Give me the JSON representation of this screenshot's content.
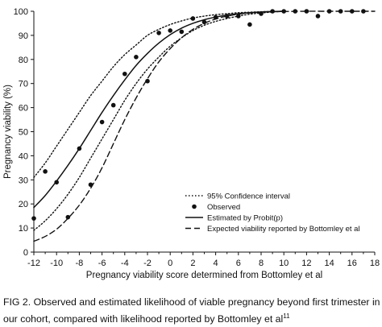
{
  "chart_data": {
    "type": "line",
    "xlabel": "Pregnancy viability score determined from Bottomley et al",
    "ylabel": "Pregnancy viability (%)",
    "xlim": [
      -12,
      18
    ],
    "ylim": [
      0,
      100
    ],
    "xticks": [
      -12,
      -10,
      -8,
      -6,
      -4,
      -2,
      0,
      2,
      4,
      6,
      8,
      10,
      12,
      14,
      16,
      18
    ],
    "yticks": [
      0,
      10,
      20,
      30,
      40,
      50,
      60,
      70,
      80,
      90,
      100
    ],
    "legend_position": "bottom-right",
    "series": [
      {
        "name": "95% Confidence interval",
        "style": "dotted",
        "x": [
          -12,
          -11,
          -10,
          -9,
          -8,
          -7,
          -6,
          -5,
          -4,
          -3,
          -2,
          -1,
          0,
          1,
          2,
          3,
          4,
          5,
          6,
          7,
          8,
          9,
          10
        ],
        "y": [
          31,
          37,
          44,
          51,
          58,
          65,
          71,
          77,
          82,
          86,
          90,
          92.5,
          94.5,
          96,
          97.2,
          98,
          98.6,
          99,
          99.4,
          99.6,
          99.8,
          99.9,
          100
        ]
      },
      {
        "name": "",
        "style": "dotted",
        "x": [
          -12,
          -11,
          -10,
          -9,
          -8,
          -7,
          -6,
          -5,
          -4,
          -3,
          -2,
          -1,
          0,
          1,
          2,
          3,
          4,
          5,
          6,
          7,
          8,
          9,
          10
        ],
        "y": [
          9,
          13,
          18,
          24,
          31,
          39,
          47,
          55,
          63,
          70,
          76,
          81,
          85.5,
          89,
          92,
          94.2,
          95.8,
          97,
          98,
          98.8,
          99.3,
          99.7,
          100
        ]
      },
      {
        "name": "Observed",
        "style": "points",
        "x": [
          -12,
          -11,
          -10,
          -9,
          -8,
          -7,
          -6,
          -5,
          -4,
          -3,
          -2,
          -1,
          0,
          1,
          2,
          3,
          4,
          5,
          6,
          7,
          8,
          9,
          10,
          11,
          12,
          13,
          14,
          15,
          16,
          17
        ],
        "y": [
          14,
          33.5,
          29,
          14.5,
          43,
          28,
          54,
          61,
          74,
          81,
          71,
          91,
          92,
          91.5,
          97,
          95.5,
          97.5,
          98,
          98,
          94.5,
          99,
          100,
          100,
          100,
          100,
          98,
          100,
          100,
          100,
          100
        ]
      },
      {
        "name": "Estimated by Probit(p)",
        "style": "solid",
        "x": [
          -12,
          -11,
          -10,
          -9,
          -8,
          -7,
          -6,
          -5,
          -4,
          -3,
          -2,
          -1,
          0,
          1,
          2,
          3,
          4,
          5,
          6,
          7,
          8,
          9,
          10
        ],
        "y": [
          18.5,
          23.5,
          29.5,
          36,
          43,
          50.5,
          58,
          65,
          71.5,
          77.5,
          82.5,
          86.8,
          90.3,
          93,
          95,
          96.5,
          97.6,
          98.4,
          99,
          99.4,
          99.7,
          99.9,
          100
        ]
      },
      {
        "name": "Expected viability reported by Bottomley et al",
        "style": "dashed",
        "x": [
          -12,
          -11,
          -10,
          -9,
          -8,
          -7,
          -6,
          -5,
          -4,
          -3,
          -2,
          -1,
          0,
          1,
          2,
          3,
          4,
          5,
          6,
          7,
          8,
          9,
          10,
          12,
          14,
          16,
          18
        ],
        "y": [
          4.5,
          6.5,
          9.5,
          14,
          19.5,
          26.5,
          35,
          45,
          55,
          64,
          72,
          79,
          84.5,
          89,
          92.5,
          95,
          96.8,
          98,
          98.8,
          99.3,
          99.6,
          99.8,
          99.9,
          100,
          100,
          100,
          100
        ]
      }
    ]
  },
  "caption": {
    "text": "FIG 2.  Observed and estimated likelihood of viable pregnancy beyond first trimester in our cohort, compared with likelihood reported by Bottomley et al",
    "superscript": "11"
  },
  "colors": {
    "ink": "#111111",
    "background": "#ffffff"
  }
}
